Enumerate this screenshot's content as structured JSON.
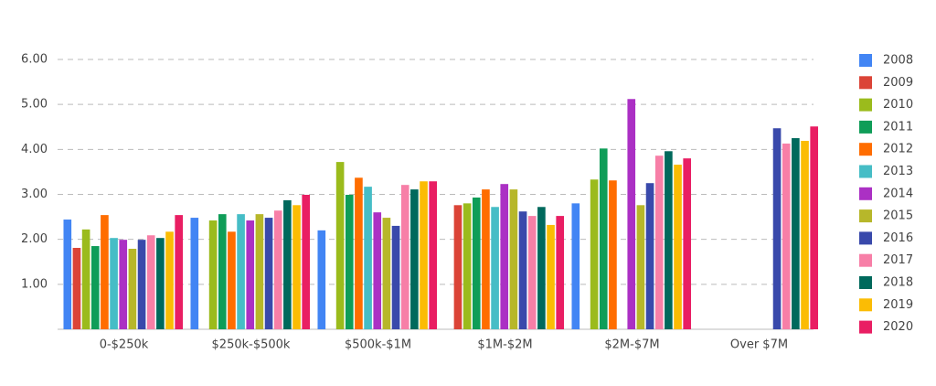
{
  "chart_data": {
    "type": "bar",
    "categories": [
      "0-$250k",
      "$250k-$500k",
      "$500k-$1M",
      "$1M-$2M",
      "$2M-$7M",
      "Over $7M"
    ],
    "series": [
      {
        "name": "2008",
        "color": "#4285f4",
        "values": [
          2.44,
          2.48,
          2.2,
          null,
          2.8,
          null
        ]
      },
      {
        "name": "2009",
        "color": "#db4437",
        "values": [
          1.81,
          null,
          null,
          2.76,
          null,
          null
        ]
      },
      {
        "name": "2010",
        "color": "#9bbb1c",
        "values": [
          2.22,
          2.42,
          3.72,
          2.8,
          3.33,
          null
        ]
      },
      {
        "name": "2011",
        "color": "#0f9d58",
        "values": [
          1.85,
          2.56,
          2.99,
          2.93,
          4.02,
          null
        ]
      },
      {
        "name": "2012",
        "color": "#ff6d00",
        "values": [
          2.54,
          2.17,
          3.37,
          3.11,
          3.31,
          null
        ]
      },
      {
        "name": "2013",
        "color": "#46bdc6",
        "values": [
          2.03,
          2.56,
          3.17,
          2.72,
          null,
          null
        ]
      },
      {
        "name": "2014",
        "color": "#ab30c4",
        "values": [
          1.99,
          2.42,
          2.6,
          3.23,
          5.12,
          null
        ]
      },
      {
        "name": "2015",
        "color": "#b7b72a",
        "values": [
          1.79,
          2.56,
          2.48,
          3.11,
          2.76,
          null
        ]
      },
      {
        "name": "2016",
        "color": "#3949ab",
        "values": [
          1.99,
          2.48,
          2.3,
          2.62,
          3.25,
          4.47
        ]
      },
      {
        "name": "2017",
        "color": "#f77fa7",
        "values": [
          2.09,
          2.64,
          3.21,
          2.52,
          3.86,
          4.13
        ]
      },
      {
        "name": "2018",
        "color": "#00695c",
        "values": [
          2.03,
          2.87,
          3.11,
          2.72,
          3.96,
          4.25
        ]
      },
      {
        "name": "2019",
        "color": "#fbbc04",
        "values": [
          2.17,
          2.76,
          3.29,
          2.32,
          3.66,
          4.19
        ]
      },
      {
        "name": "2020",
        "color": "#e91e63",
        "values": [
          2.54,
          2.99,
          3.29,
          2.52,
          3.8,
          4.51
        ]
      }
    ],
    "ylim": [
      0,
      6
    ],
    "yticks": [
      {
        "value": 1,
        "label": "1.00"
      },
      {
        "value": 2,
        "label": "2.00"
      },
      {
        "value": 3,
        "label": "3.00"
      },
      {
        "value": 4,
        "label": "4.00"
      },
      {
        "value": 5,
        "label": "5.00"
      },
      {
        "value": 6,
        "label": "6.00"
      }
    ],
    "grid": true,
    "legend": "right"
  }
}
